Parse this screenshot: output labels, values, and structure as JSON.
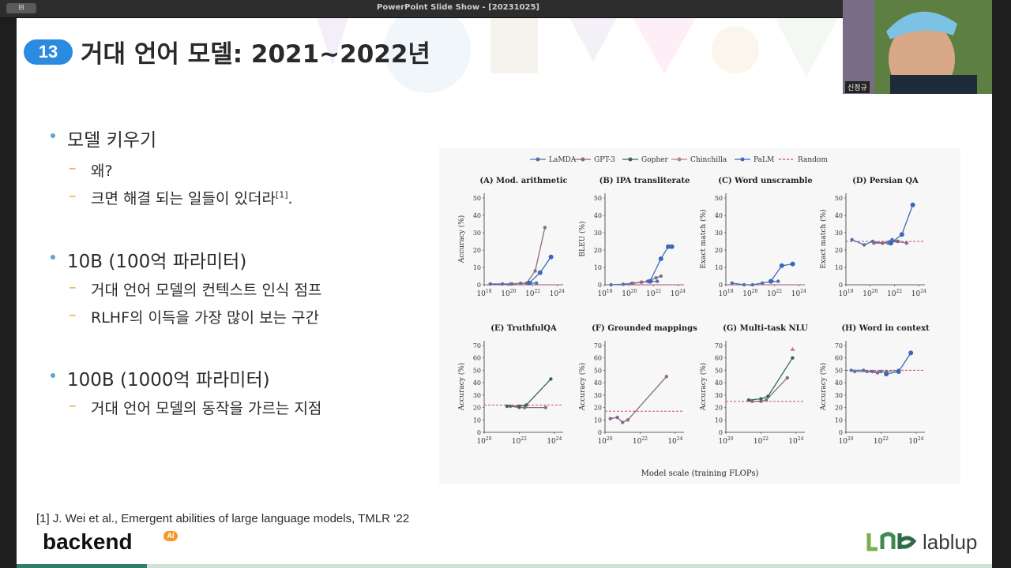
{
  "window": {
    "title": "PowerPoint Slide Show - [20231025]",
    "button_label": "⊟"
  },
  "slide": {
    "number": "13",
    "title": "거대 언어 모델: 2021~2022년",
    "bullets": [
      {
        "text": "모델 키우기",
        "subs": [
          {
            "text": "왜?"
          },
          {
            "text": "크면 해결 되는 일들이 있더라",
            "sup": "[1]",
            "tail": "."
          }
        ]
      },
      {
        "text": "10B (100억 파라미터)",
        "subs": [
          {
            "text": "거대 언어 모델의 컨텍스트 인식 점프"
          },
          {
            "text": "RLHF의 이득을 가장 많이 보는 구간"
          }
        ]
      },
      {
        "text": "100B (1000억 파라미터)",
        "subs": [
          {
            "text": "거대 언어 모델의 동작을 가르는 지점"
          }
        ]
      }
    ],
    "citation": "[1] J. Wei et al., Emergent abilities of large language models, TMLR ‘22",
    "logo_left": "backend",
    "logo_left_badge": "AI",
    "logo_right": "lablup"
  },
  "webcam": {
    "name": "신정규"
  },
  "colors": {
    "badge": "#2a8be0",
    "dash": "#e8a23a",
    "bullet_dot": "#5aa5d8",
    "LaMDA": "#4a72b0",
    "GPT-3": "#8a6a84",
    "Gopher": "#2f6b48",
    "Chinchilla": "#b98080",
    "PaLM": "#3a68b8",
    "Random": "#d04a6a"
  },
  "chart_data": {
    "type": "line",
    "legend": [
      {
        "name": "LaMDA"
      },
      {
        "name": "GPT-3"
      },
      {
        "name": "Gopher"
      },
      {
        "name": "Chinchilla"
      },
      {
        "name": "PaLM"
      },
      {
        "name": "Random"
      }
    ],
    "xlabel": "Model scale (training FLOPs)",
    "panels": [
      {
        "title": "(A) Mod. arithmetic",
        "ylabel": "Accuracy (%)",
        "ylim": [
          0,
          50
        ],
        "yticks": [
          "0",
          "10",
          "20",
          "30",
          "40",
          "50"
        ],
        "xlim": [
          18,
          24.5
        ],
        "xticks": [
          18,
          20,
          22,
          24
        ],
        "random": 0,
        "series": [
          {
            "name": "LaMDA",
            "x": [
              18.5,
              19.5,
              20.2,
              21,
              21.8,
              22.3
            ],
            "y": [
              0.5,
              0.5,
              0.5,
              0.8,
              1,
              1
            ]
          },
          {
            "name": "GPT-3",
            "x": [
              20.3,
              21,
              21.5,
              22.2,
              23
            ],
            "y": [
              0.5,
              0.8,
              1,
              8,
              33
            ]
          },
          {
            "name": "PaLM",
            "x": [
              21.7,
              22.6,
              23.5
            ],
            "y": [
              1,
              7,
              16
            ]
          }
        ]
      },
      {
        "title": "(B) IPA transliterate",
        "ylabel": "BLEU (%)",
        "ylim": [
          0,
          50
        ],
        "yticks": [
          "0",
          "10",
          "20",
          "30",
          "40",
          "50"
        ],
        "xlim": [
          18,
          24.5
        ],
        "xticks": [
          18,
          20,
          22,
          24
        ],
        "random": 0,
        "series": [
          {
            "name": "LaMDA",
            "x": [
              18.5,
              19.5,
              20.2,
              21,
              21.8,
              22.3
            ],
            "y": [
              0,
              0.3,
              0.8,
              1.5,
              2,
              2
            ]
          },
          {
            "name": "GPT-3",
            "x": [
              20.3,
              21,
              21.5,
              22.2,
              22.6
            ],
            "y": [
              0.8,
              1.5,
              2,
              4,
              5
            ]
          },
          {
            "name": "PaLM",
            "x": [
              21.7,
              22.6,
              23.2,
              23.5
            ],
            "y": [
              2,
              15,
              22,
              22
            ]
          }
        ]
      },
      {
        "title": "(C) Word unscramble",
        "ylabel": "Exact match (%)",
        "ylim": [
          0,
          50
        ],
        "yticks": [
          "0",
          "10",
          "20",
          "30",
          "40",
          "50"
        ],
        "xlim": [
          18,
          24.5
        ],
        "xticks": [
          18,
          20,
          22,
          24
        ],
        "random": 0,
        "series": [
          {
            "name": "LaMDA",
            "x": [
              18.5,
              19.5,
              20.2,
              21,
              21.8,
              22.3
            ],
            "y": [
              1,
              0,
              0,
              1,
              2,
              2
            ]
          },
          {
            "name": "PaLM",
            "x": [
              21.7,
              22.6,
              23.5
            ],
            "y": [
              2,
              11,
              12
            ]
          }
        ]
      },
      {
        "title": "(D) Persian QA",
        "ylabel": "Exact match (%)",
        "ylim": [
          0,
          50
        ],
        "yticks": [
          "0",
          "10",
          "20",
          "30",
          "40",
          "50"
        ],
        "xlim": [
          18,
          24.5
        ],
        "xticks": [
          18,
          20,
          22,
          24
        ],
        "random": 25,
        "series": [
          {
            "name": "LaMDA",
            "x": [
              18.5,
              19.5,
              20.2,
              21,
              21.8,
              22.3
            ],
            "y": [
              26,
              23,
              25,
              24,
              26,
              25
            ]
          },
          {
            "name": "GPT-3",
            "x": [
              20.3,
              21,
              21.5,
              22.2,
              23
            ],
            "y": [
              24,
              24,
              24,
              25,
              24
            ]
          },
          {
            "name": "PaLM",
            "x": [
              21.7,
              22.6,
              23.5
            ],
            "y": [
              24,
              29,
              46
            ]
          }
        ]
      },
      {
        "title": "(E) TruthfulQA",
        "ylabel": "Accuracy (%)",
        "ylim": [
          0,
          70
        ],
        "yticks": [
          "0",
          "10",
          "20",
          "30",
          "40",
          "50",
          "60",
          "70"
        ],
        "xlim": [
          20,
          24.5
        ],
        "xticks": [
          20,
          22,
          24
        ],
        "random": 22,
        "series": [
          {
            "name": "GPT-3",
            "x": [
              21.5,
              22,
              22.3,
              23.5
            ],
            "y": [
              21,
              20,
              20,
              20
            ]
          },
          {
            "name": "Gopher",
            "x": [
              21.3,
              22,
              22.4,
              23.8
            ],
            "y": [
              21,
              21,
              22,
              43
            ]
          }
        ]
      },
      {
        "title": "(F) Grounded mappings",
        "ylabel": "Accuracy (%)",
        "ylim": [
          0,
          70
        ],
        "yticks": [
          "0",
          "10",
          "20",
          "30",
          "40",
          "50",
          "60",
          "70"
        ],
        "xlim": [
          20,
          24.5
        ],
        "xticks": [
          20,
          22,
          24
        ],
        "random": 17,
        "series": [
          {
            "name": "GPT-3",
            "x": [
              20.3,
              20.7,
              21,
              21.3,
              23.5
            ],
            "y": [
              11,
              12,
              8,
              10,
              45
            ]
          }
        ]
      },
      {
        "title": "(G) Multi-task NLU",
        "ylabel": "Accuracy (%)",
        "ylim": [
          0,
          70
        ],
        "yticks": [
          "0",
          "10",
          "20",
          "30",
          "40",
          "50",
          "60",
          "70"
        ],
        "xlim": [
          20,
          24.5
        ],
        "xticks": [
          20,
          22,
          24
        ],
        "random": 25,
        "series": [
          {
            "name": "GPT-3",
            "x": [
              21.5,
              22,
              22.3,
              23.5
            ],
            "y": [
              25,
              25,
              26,
              44
            ]
          },
          {
            "name": "Gopher",
            "x": [
              21.3,
              22,
              22.4,
              23.8
            ],
            "y": [
              26,
              27,
              29,
              60
            ]
          },
          {
            "name": "Chinchilla",
            "x": [
              23.8
            ],
            "y": [
              67
            ]
          }
        ]
      },
      {
        "title": "(H) Word in context",
        "ylabel": "Accuracy (%)",
        "ylim": [
          0,
          70
        ],
        "yticks": [
          "0",
          "10",
          "20",
          "30",
          "40",
          "50",
          "60",
          "70"
        ],
        "xlim": [
          20,
          24.5
        ],
        "xticks": [
          20,
          22,
          24
        ],
        "random": 50,
        "series": [
          {
            "name": "LaMDA",
            "x": [
              20.3,
              21,
              21.5,
              22
            ],
            "y": [
              50,
              50,
              49,
              49
            ]
          },
          {
            "name": "GPT-3",
            "x": [
              20.5,
              21.2,
              21.8,
              22.3,
              23
            ],
            "y": [
              49,
              49,
              48,
              49,
              50
            ]
          },
          {
            "name": "PaLM",
            "x": [
              22.3,
              23,
              23.7
            ],
            "y": [
              47,
              49,
              64
            ]
          }
        ]
      }
    ]
  }
}
